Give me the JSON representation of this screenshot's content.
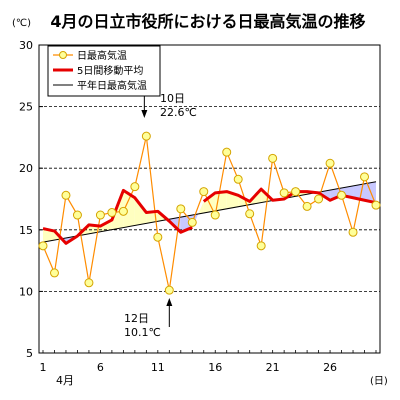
{
  "colors": {
    "daily_line": "#ff8c00",
    "daily_marker_fill": "#ffff99",
    "daily_marker_stroke": "#d4a400",
    "moving_avg": "#e60000",
    "normal_line": "#000000",
    "fill_above_normal": "#ffffc0",
    "fill_below_normal": "#c8c8ff",
    "grid": "#000000"
  },
  "chart_data": {
    "type": "line",
    "title": "4月の日立市役所における日最高気温の推移",
    "unit_label": "(℃)",
    "x_unit_label": "(日)",
    "month_label": "4月",
    "xlim": [
      1,
      30
    ],
    "ylim": [
      5,
      30
    ],
    "y_ticks": [
      5,
      10,
      15,
      20,
      25,
      30
    ],
    "x_tick_labels": [
      1,
      6,
      11,
      16,
      21,
      26
    ],
    "grid": "horizontal dashed",
    "legend_placement": "top-left",
    "days": [
      1,
      2,
      3,
      4,
      5,
      6,
      7,
      8,
      9,
      10,
      11,
      12,
      13,
      14,
      15,
      16,
      17,
      18,
      19,
      20,
      21,
      22,
      23,
      24,
      25,
      26,
      27,
      28,
      29,
      30
    ],
    "series": [
      {
        "name": "日最高気温",
        "style": "line-with-markers",
        "values": [
          13.7,
          11.5,
          17.8,
          16.2,
          10.7,
          16.2,
          16.4,
          16.5,
          18.5,
          22.6,
          14.4,
          10.1,
          16.7,
          15.6,
          18.1,
          16.2,
          21.3,
          19.1,
          16.3,
          13.7,
          20.8,
          18.0,
          18.1,
          16.9,
          17.5,
          20.4,
          17.8,
          14.8,
          19.3,
          17.0
        ]
      },
      {
        "name": "5日間移動平均",
        "style": "thick-line",
        "x": [
          1,
          2,
          3,
          4,
          5,
          6,
          7,
          8,
          9,
          10,
          11,
          12,
          13,
          14,
          15,
          16,
          17,
          18,
          19,
          20,
          21,
          22,
          23,
          24,
          25,
          26,
          27,
          28,
          29,
          30
        ],
        "values": [
          15.1,
          14.9,
          13.9,
          14.5,
          15.4,
          15.3,
          15.8,
          18.2,
          17.6,
          16.4,
          16.5,
          15.7,
          14.8,
          15.2,
          null,
          null,
          null,
          null,
          null,
          null,
          null,
          null,
          null,
          null,
          null,
          null,
          null,
          null,
          null,
          null
        ]
      },
      {
        "name": "5日間移動平均",
        "style": "thick-line",
        "x": [
          15,
          16,
          17,
          18,
          19,
          20,
          21,
          22,
          23,
          24,
          25,
          26,
          27,
          28,
          29,
          30
        ],
        "values": [
          17.3,
          18.0,
          18.1,
          17.8,
          17.3,
          18.3,
          17.4,
          17.5,
          18.1,
          18.1,
          18.0,
          17.4,
          17.8,
          17.6,
          17.4,
          17.2
        ]
      },
      {
        "name": "平年日最高気温",
        "style": "thin-line",
        "values_start_end": [
          14.0,
          18.9
        ]
      }
    ],
    "annotations": [
      {
        "day": 10,
        "text_line1": "10日",
        "text_line2": "22.6℃",
        "arrow": "down"
      },
      {
        "day": 12,
        "text_line1": "12日",
        "text_line2": "10.1℃",
        "arrow": "up"
      }
    ]
  }
}
